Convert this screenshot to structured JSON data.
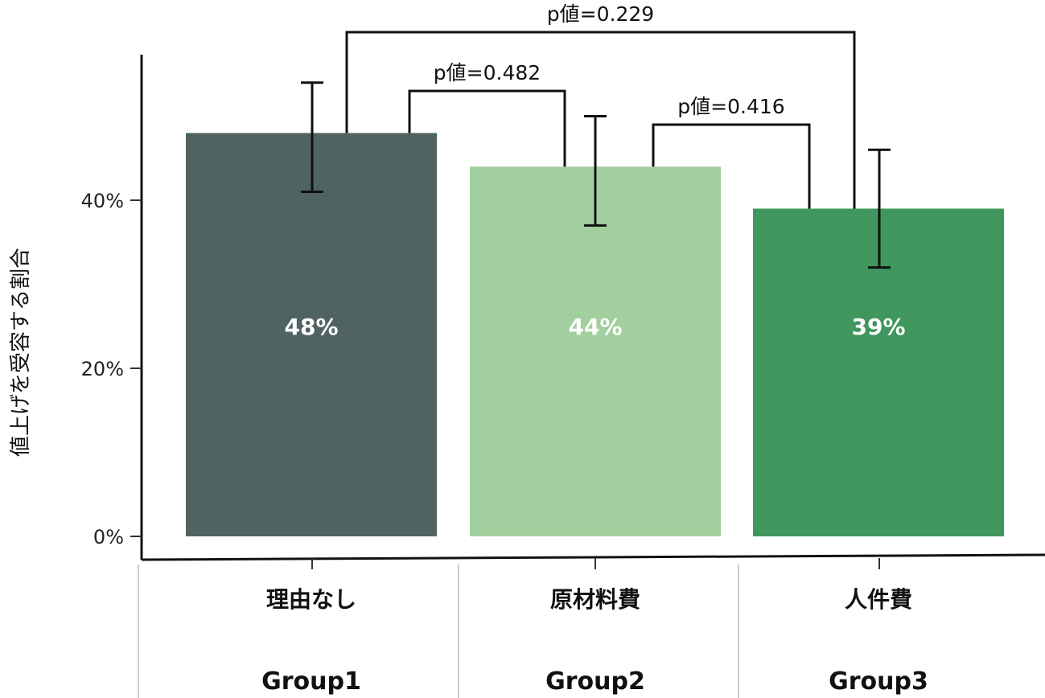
{
  "chart_data": {
    "type": "bar",
    "ylabel": "値上げを受容する割合",
    "ylim": [
      0,
      0.6
    ],
    "yticks": [
      0,
      0.2,
      0.4
    ],
    "ytick_labels": [
      "0%",
      "20%",
      "40%"
    ],
    "categories": [
      "理由なし",
      "原材料費",
      "人件費"
    ],
    "groups": [
      "Group1",
      "Group2",
      "Group3"
    ],
    "values": [
      0.48,
      0.44,
      0.39
    ],
    "value_labels": [
      "48%",
      "44%",
      "39%"
    ],
    "error_low": [
      0.41,
      0.37,
      0.32
    ],
    "error_high": [
      0.54,
      0.5,
      0.46
    ],
    "colors": [
      "#506363",
      "#a2cf9e",
      "#3f975d"
    ],
    "comparisons": [
      {
        "from": 0,
        "to": 2,
        "label": "p値=0.229",
        "level": 0.6
      },
      {
        "from": 0,
        "to": 1,
        "label": "p値=0.482",
        "level": 0.53
      },
      {
        "from": 1,
        "to": 2,
        "label": "p値=0.416",
        "level": 0.49
      }
    ],
    "grid": false,
    "legend": "none"
  }
}
